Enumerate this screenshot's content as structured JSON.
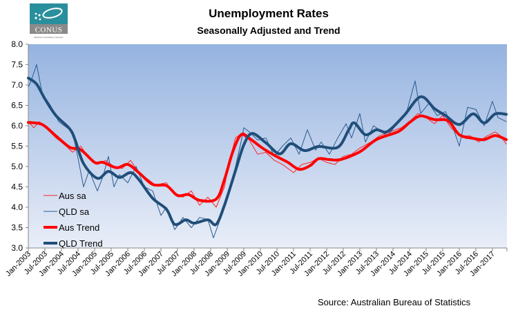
{
  "logo": {
    "text": "CONUS",
    "tagline": "Business Consultancy Services",
    "colors": {
      "top": "#2a8f9c",
      "bottom": "#8a8a8a"
    }
  },
  "chart_data": {
    "type": "line",
    "title": "Unemployment Rates",
    "subtitle": "Seasonally Adjusted and Trend",
    "source": "Source: Australian Bureau of Statistics",
    "xlabel": "",
    "ylabel": "",
    "ylim": [
      3.0,
      8.0
    ],
    "yticks": [
      "3.0",
      "3.5",
      "4.0",
      "4.5",
      "5.0",
      "5.5",
      "6.0",
      "6.5",
      "7.0",
      "7.5",
      "8.0"
    ],
    "xlim": [
      "2003-01",
      "2017-06"
    ],
    "xticks": [
      "Jan-2003",
      "Jul-2003",
      "Jan-2004",
      "Jul-2004",
      "Jan-2005",
      "Jul-2005",
      "Jan-2006",
      "Jul-2006",
      "Jan-2007",
      "Jul-2007",
      "Jan-2008",
      "Jul-2008",
      "Jan-2009",
      "Jul-2009",
      "Jan-2010",
      "Jul-2010",
      "Jan-2011",
      "Jul-2011",
      "Jan-2012",
      "Jul-2012",
      "Jan-2013",
      "Jul-2013",
      "Jan-2014",
      "Jul-2014",
      "Jan-2015",
      "Jul-2015",
      "Jan-2016",
      "Jul-2016",
      "Jan-2017"
    ],
    "grid": false,
    "legend_placement": "bottom-left",
    "background": {
      "top": "#95b3e0",
      "bottom": "#e9eef8"
    },
    "series": [
      {
        "name": "Aus sa",
        "color": "#ff2020",
        "style": "thin",
        "x": [
          "2003-01",
          "2003-03",
          "2003-05",
          "2003-08",
          "2003-11",
          "2004-02",
          "2004-05",
          "2004-08",
          "2004-11",
          "2005-02",
          "2005-05",
          "2005-08",
          "2005-11",
          "2006-02",
          "2006-05",
          "2006-08",
          "2006-11",
          "2007-03",
          "2007-06",
          "2007-09",
          "2007-12",
          "2008-03",
          "2008-06",
          "2008-09",
          "2008-12",
          "2009-02",
          "2009-04",
          "2009-06",
          "2009-09",
          "2009-12",
          "2010-03",
          "2010-06",
          "2010-09",
          "2011-01",
          "2011-04",
          "2011-07",
          "2011-10",
          "2012-01",
          "2012-04",
          "2012-07",
          "2012-10",
          "2013-01",
          "2013-05",
          "2013-08",
          "2013-12",
          "2014-04",
          "2014-07",
          "2014-10",
          "2015-01",
          "2015-04",
          "2015-07",
          "2015-10",
          "2016-01",
          "2016-05",
          "2016-08",
          "2016-11",
          "2017-02",
          "2017-04",
          "2017-06"
        ],
        "y": [
          6.1,
          5.95,
          6.1,
          5.9,
          5.7,
          5.55,
          5.35,
          5.5,
          5.2,
          5.05,
          5.15,
          5.0,
          4.95,
          5.15,
          4.85,
          4.7,
          4.55,
          4.6,
          4.3,
          4.25,
          4.4,
          4.05,
          4.25,
          4.0,
          4.5,
          5.2,
          5.7,
          5.8,
          5.65,
          5.3,
          5.35,
          5.15,
          5.05,
          4.85,
          5.05,
          5.1,
          5.2,
          5.1,
          5.05,
          5.25,
          5.3,
          5.45,
          5.6,
          5.75,
          5.85,
          5.95,
          6.1,
          6.3,
          6.2,
          6.05,
          6.25,
          5.95,
          5.75,
          5.75,
          5.6,
          5.75,
          5.85,
          5.75,
          5.55
        ]
      },
      {
        "name": "QLD sa",
        "color": "#2a5a8c",
        "style": "thin",
        "x": [
          "2003-01",
          "2003-02",
          "2003-04",
          "2003-06",
          "2003-09",
          "2003-12",
          "2004-03",
          "2004-05",
          "2004-07",
          "2004-09",
          "2004-11",
          "2005-02",
          "2005-04",
          "2005-06",
          "2005-08",
          "2005-10",
          "2006-01",
          "2006-04",
          "2006-07",
          "2006-10",
          "2007-01",
          "2007-03",
          "2007-06",
          "2007-09",
          "2007-12",
          "2008-03",
          "2008-06",
          "2008-08",
          "2008-11",
          "2009-02",
          "2009-04",
          "2009-06",
          "2009-07",
          "2009-09",
          "2009-12",
          "2010-03",
          "2010-06",
          "2010-09",
          "2010-12",
          "2011-03",
          "2011-06",
          "2011-09",
          "2011-11",
          "2012-02",
          "2012-05",
          "2012-08",
          "2012-10",
          "2013-01",
          "2013-03",
          "2013-06",
          "2013-08",
          "2013-11",
          "2014-03",
          "2014-06",
          "2014-09",
          "2014-11",
          "2015-02",
          "2015-05",
          "2015-08",
          "2015-11",
          "2016-01",
          "2016-04",
          "2016-07",
          "2016-10",
          "2017-01",
          "2017-03",
          "2017-06"
        ],
        "y": [
          6.95,
          7.1,
          7.5,
          6.8,
          6.5,
          6.1,
          5.95,
          5.85,
          5.2,
          4.5,
          4.9,
          4.4,
          4.75,
          5.25,
          4.5,
          4.8,
          4.6,
          5.0,
          4.5,
          4.4,
          3.8,
          4.0,
          3.45,
          3.75,
          3.5,
          3.75,
          3.7,
          3.25,
          3.8,
          4.5,
          5.0,
          5.6,
          5.95,
          5.85,
          5.65,
          5.7,
          5.25,
          5.5,
          5.7,
          5.3,
          5.9,
          5.4,
          5.6,
          5.3,
          5.7,
          6.05,
          5.7,
          6.3,
          5.6,
          6.0,
          5.9,
          5.75,
          6.1,
          6.35,
          7.1,
          6.3,
          6.55,
          6.25,
          6.35,
          5.9,
          5.5,
          6.45,
          6.4,
          6.0,
          6.6,
          6.2,
          6.1
        ]
      },
      {
        "name": "Aus Trend",
        "color": "#ff0000",
        "style": "thick",
        "x": [
          "2003-01",
          "2003-06",
          "2003-11",
          "2004-04",
          "2004-08",
          "2005-01",
          "2005-04",
          "2005-09",
          "2006-01",
          "2006-05",
          "2006-10",
          "2007-03",
          "2007-07",
          "2007-11",
          "2008-03",
          "2008-09",
          "2008-12",
          "2009-03",
          "2009-06",
          "2009-09",
          "2010-02",
          "2010-07",
          "2010-11",
          "2011-03",
          "2011-07",
          "2011-10",
          "2012-02",
          "2012-06",
          "2013-01",
          "2013-07",
          "2014-03",
          "2014-07",
          "2014-11",
          "2015-04",
          "2015-09",
          "2016-01",
          "2016-06",
          "2016-10",
          "2017-02",
          "2017-06"
        ],
        "y": [
          6.08,
          6.03,
          5.75,
          5.47,
          5.41,
          5.1,
          5.1,
          4.97,
          5.05,
          4.85,
          4.56,
          4.53,
          4.29,
          4.31,
          4.17,
          4.2,
          4.68,
          5.36,
          5.78,
          5.69,
          5.44,
          5.24,
          5.1,
          4.93,
          5.02,
          5.19,
          5.17,
          5.17,
          5.36,
          5.66,
          5.86,
          6.08,
          6.24,
          6.15,
          6.12,
          5.78,
          5.69,
          5.66,
          5.76,
          5.66
        ]
      },
      {
        "name": "QLD Trend",
        "color": "#1f4e79",
        "style": "thick",
        "x": [
          "2003-01",
          "2003-04",
          "2003-07",
          "2003-11",
          "2004-04",
          "2004-06",
          "2004-09",
          "2005-02",
          "2005-06",
          "2005-10",
          "2006-02",
          "2006-05",
          "2006-10",
          "2007-03",
          "2007-06",
          "2007-10",
          "2008-01",
          "2008-06",
          "2008-09",
          "2008-12",
          "2009-04",
          "2009-07",
          "2009-10",
          "2010-03",
          "2010-08",
          "2010-12",
          "2011-05",
          "2011-10",
          "2012-05",
          "2012-09",
          "2012-11",
          "2013-03",
          "2013-07",
          "2013-11",
          "2014-05",
          "2014-11",
          "2015-04",
          "2015-08",
          "2016-01",
          "2016-06",
          "2016-10",
          "2017-02",
          "2017-06"
        ],
        "y": [
          7.17,
          7.02,
          6.66,
          6.25,
          5.92,
          5.64,
          5.07,
          4.71,
          4.88,
          4.73,
          4.85,
          4.68,
          4.22,
          3.95,
          3.58,
          3.69,
          3.61,
          3.69,
          3.58,
          4.05,
          4.9,
          5.53,
          5.81,
          5.58,
          5.31,
          5.56,
          5.39,
          5.49,
          5.47,
          5.9,
          6.07,
          5.78,
          5.9,
          5.86,
          6.25,
          6.71,
          6.42,
          6.25,
          6.03,
          6.29,
          6.07,
          6.29,
          6.28
        ]
      }
    ]
  }
}
